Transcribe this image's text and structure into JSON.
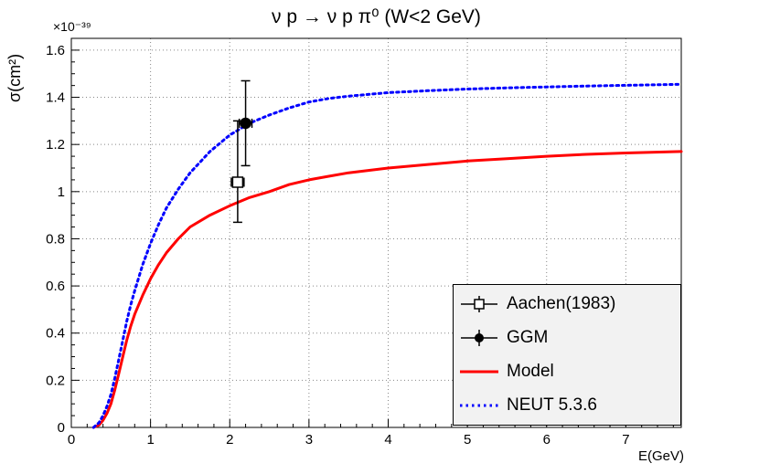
{
  "chart_data": {
    "type": "line",
    "title": "ν p → ν p π⁰ (W<2 GeV)",
    "xlabel": "E(GeV)",
    "ylabel": "σ(cm²)",
    "y_exponent_label": "×10⁻³⁹",
    "xlim": [
      0,
      7.7
    ],
    "ylim": [
      0,
      1.65
    ],
    "x_major_ticks": [
      0,
      1,
      2,
      3,
      4,
      5,
      6,
      7
    ],
    "x_tick_labels": [
      "0",
      "1",
      "2",
      "3",
      "4",
      "5",
      "6",
      "7"
    ],
    "x_minor_step": 0.2,
    "y_major_ticks": [
      0,
      0.2,
      0.4,
      0.6,
      0.8,
      1.0,
      1.2,
      1.4,
      1.6
    ],
    "y_tick_labels": [
      "0",
      "0.2",
      "0.4",
      "0.6",
      "0.8",
      "1",
      "1.2",
      "1.4",
      "1.6"
    ],
    "y_minor_step": 0.05,
    "grid": true,
    "grid_color": "#888888",
    "frame_color": "#000000",
    "legend_position": "bottom-right",
    "series": [
      {
        "name": "Model",
        "kind": "curve",
        "color": "#ff0000",
        "line_style": "solid",
        "line_width": 3,
        "points": [
          [
            0.28,
            0
          ],
          [
            0.35,
            0.01
          ],
          [
            0.4,
            0.03
          ],
          [
            0.45,
            0.06
          ],
          [
            0.5,
            0.1
          ],
          [
            0.55,
            0.16
          ],
          [
            0.6,
            0.23
          ],
          [
            0.65,
            0.3
          ],
          [
            0.7,
            0.37
          ],
          [
            0.75,
            0.43
          ],
          [
            0.8,
            0.48
          ],
          [
            0.9,
            0.56
          ],
          [
            1.0,
            0.63
          ],
          [
            1.1,
            0.69
          ],
          [
            1.2,
            0.74
          ],
          [
            1.35,
            0.8
          ],
          [
            1.5,
            0.85
          ],
          [
            1.75,
            0.9
          ],
          [
            2.0,
            0.94
          ],
          [
            2.25,
            0.975
          ],
          [
            2.5,
            1.0
          ],
          [
            2.75,
            1.03
          ],
          [
            3.0,
            1.05
          ],
          [
            3.25,
            1.065
          ],
          [
            3.5,
            1.08
          ],
          [
            4.0,
            1.1
          ],
          [
            4.5,
            1.115
          ],
          [
            5.0,
            1.13
          ],
          [
            5.5,
            1.14
          ],
          [
            6.0,
            1.15
          ],
          [
            6.5,
            1.158
          ],
          [
            7.0,
            1.164
          ],
          [
            7.7,
            1.17
          ]
        ]
      },
      {
        "name": "NEUT 5.3.6",
        "kind": "curve",
        "color": "#0000ff",
        "line_style": "dotted",
        "line_width": 3,
        "points": [
          [
            0.28,
            0
          ],
          [
            0.35,
            0.02
          ],
          [
            0.4,
            0.05
          ],
          [
            0.45,
            0.09
          ],
          [
            0.5,
            0.14
          ],
          [
            0.55,
            0.21
          ],
          [
            0.6,
            0.29
          ],
          [
            0.65,
            0.37
          ],
          [
            0.7,
            0.45
          ],
          [
            0.75,
            0.52
          ],
          [
            0.8,
            0.58
          ],
          [
            0.9,
            0.69
          ],
          [
            1.0,
            0.78
          ],
          [
            1.1,
            0.86
          ],
          [
            1.2,
            0.93
          ],
          [
            1.35,
            1.01
          ],
          [
            1.5,
            1.08
          ],
          [
            1.75,
            1.17
          ],
          [
            2.0,
            1.24
          ],
          [
            2.25,
            1.29
          ],
          [
            2.5,
            1.325
          ],
          [
            2.75,
            1.355
          ],
          [
            3.0,
            1.38
          ],
          [
            3.25,
            1.395
          ],
          [
            3.5,
            1.405
          ],
          [
            4.0,
            1.42
          ],
          [
            4.5,
            1.428
          ],
          [
            5.0,
            1.435
          ],
          [
            5.5,
            1.44
          ],
          [
            6.0,
            1.444
          ],
          [
            6.5,
            1.448
          ],
          [
            7.0,
            1.451
          ],
          [
            7.7,
            1.455
          ]
        ]
      },
      {
        "name": "Aachen(1983)",
        "kind": "points",
        "marker": "open-square",
        "color": "#000000",
        "data": [
          {
            "x": 2.1,
            "y": 1.04,
            "exl": 0.08,
            "exh": 0.08,
            "eyl": 0.17,
            "eyh": 0.26
          }
        ]
      },
      {
        "name": "GGM",
        "kind": "points",
        "marker": "filled-circle",
        "color": "#000000",
        "data": [
          {
            "x": 2.2,
            "y": 1.29,
            "exl": 0.08,
            "exh": 0.08,
            "eyl": 0.18,
            "eyh": 0.18
          }
        ]
      }
    ],
    "legend": {
      "background": "#f2f2f2",
      "border_color": "#000000",
      "entries": [
        {
          "series": "Aachen(1983)",
          "label": "Aachen(1983)"
        },
        {
          "series": "GGM",
          "label": "GGM"
        },
        {
          "series": "Model",
          "label": "Model"
        },
        {
          "series": "NEUT 5.3.6",
          "label": "NEUT 5.3.6"
        }
      ]
    }
  }
}
